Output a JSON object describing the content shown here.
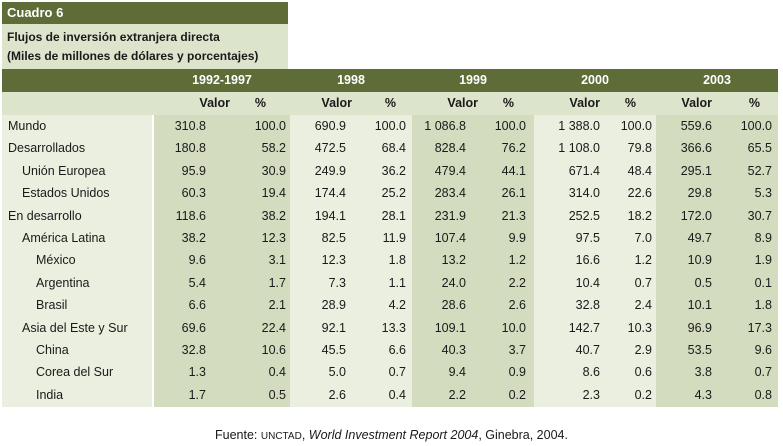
{
  "table_title": "Cuadro 6",
  "subtitle_line1": "Flujos de inversión extranjera directa",
  "subtitle_line2": "(Miles de millones de dólares y porcentajes)",
  "periods": [
    "1992-1997",
    "1998",
    "1999",
    "2000",
    "2003"
  ],
  "subheaders": {
    "valor": "Valor",
    "pct": "%"
  },
  "rows": [
    {
      "label": "Mundo",
      "indent": 0,
      "values": [
        "310.8",
        "100.0",
        "690.9",
        "100.0",
        "1 086.8",
        "100.0",
        "1 388.0",
        "100.0",
        "559.6",
        "100.0"
      ]
    },
    {
      "label": "Desarrollados",
      "indent": 0,
      "values": [
        "180.8",
        "58.2",
        "472.5",
        "68.4",
        "828.4",
        "76.2",
        "1 108.0",
        "79.8",
        "366.6",
        "65.5"
      ]
    },
    {
      "label": "Unión Europea",
      "indent": 1,
      "values": [
        "95.9",
        "30.9",
        "249.9",
        "36.2",
        "479.4",
        "44.1",
        "671.4",
        "48.4",
        "295.1",
        "52.7"
      ]
    },
    {
      "label": "Estados Unidos",
      "indent": 1,
      "values": [
        "60.3",
        "19.4",
        "174.4",
        "25.2",
        "283.4",
        "26.1",
        "314.0",
        "22.6",
        "29.8",
        "5.3"
      ]
    },
    {
      "label": "En desarrollo",
      "indent": 0,
      "values": [
        "118.6",
        "38.2",
        "194.1",
        "28.1",
        "231.9",
        "21.3",
        "252.5",
        "18.2",
        "172.0",
        "30.7"
      ]
    },
    {
      "label": "América Latina",
      "indent": 1,
      "values": [
        "38.2",
        "12.3",
        "82.5",
        "11.9",
        "107.4",
        "9.9",
        "97.5",
        "7.0",
        "49.7",
        "8.9"
      ]
    },
    {
      "label": "México",
      "indent": 2,
      "values": [
        "9.6",
        "3.1",
        "12.3",
        "1.8",
        "13.2",
        "1.2",
        "16.6",
        "1.2",
        "10.9",
        "1.9"
      ]
    },
    {
      "label": "Argentina",
      "indent": 2,
      "values": [
        "5.4",
        "1.7",
        "7.3",
        "1.1",
        "24.0",
        "2.2",
        "10.4",
        "0.7",
        "0.5",
        "0.1"
      ]
    },
    {
      "label": "Brasil",
      "indent": 2,
      "values": [
        "6.6",
        "2.1",
        "28.9",
        "4.2",
        "28.6",
        "2.6",
        "32.8",
        "2.4",
        "10.1",
        "1.8"
      ]
    },
    {
      "label": "Asia del Este y Sur",
      "indent": 1,
      "values": [
        "69.6",
        "22.4",
        "92.1",
        "13.3",
        "109.1",
        "10.0",
        "142.7",
        "10.3",
        "96.9",
        "17.3"
      ]
    },
    {
      "label": "China",
      "indent": 2,
      "values": [
        "32.8",
        "10.6",
        "45.5",
        "6.6",
        "40.3",
        "3.7",
        "40.7",
        "2.9",
        "53.5",
        "9.6"
      ]
    },
    {
      "label": "Corea del Sur",
      "indent": 2,
      "values": [
        "1.3",
        "0.4",
        "5.0",
        "0.7",
        "9.4",
        "0.9",
        "8.6",
        "0.6",
        "3.8",
        "0.7"
      ]
    },
    {
      "label": "India",
      "indent": 2,
      "values": [
        "1.7",
        "0.5",
        "2.6",
        "0.4",
        "2.2",
        "0.2",
        "2.3",
        "0.2",
        "4.3",
        "0.8"
      ]
    }
  ],
  "source": {
    "prefix": "Fuente: ",
    "org": "UNCTAD",
    "separator": ", ",
    "report": "World Investment Report 2004",
    "suffix": ", Ginebra, 2004."
  }
}
